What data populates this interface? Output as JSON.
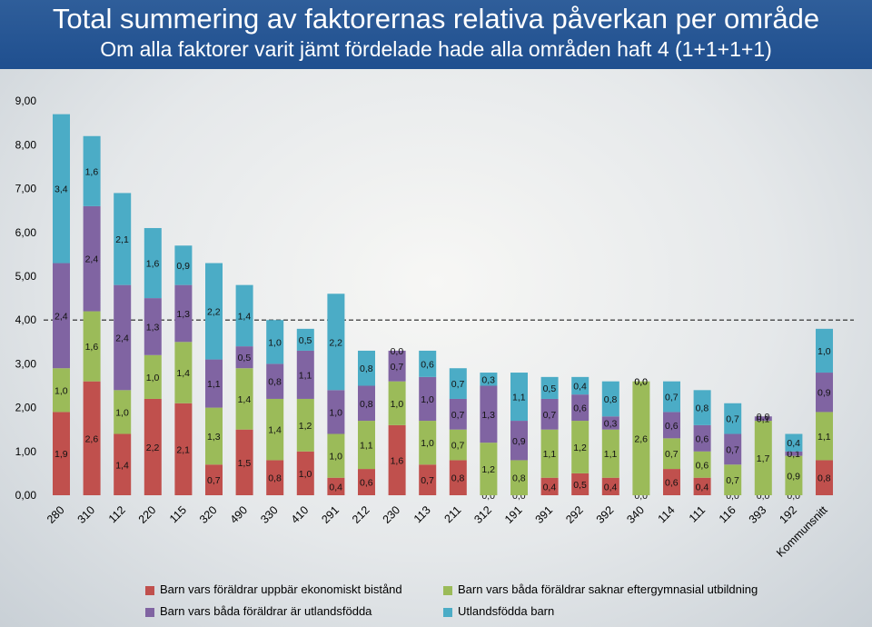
{
  "title": "Total summering av faktorernas relativa påverkan per område",
  "subtitle": "Om alla faktorer varit jämt fördelade hade alla områden haft 4 (1+1+1+1)",
  "chart_data": {
    "type": "bar",
    "stacked": true,
    "categories": [
      "280",
      "310",
      "112",
      "220",
      "115",
      "320",
      "490",
      "330",
      "410",
      "291",
      "212",
      "230",
      "113",
      "211",
      "312",
      "191",
      "391",
      "292",
      "392",
      "340",
      "114",
      "111",
      "116",
      "393",
      "192",
      "Kommunsnitt"
    ],
    "ylim": [
      0,
      9
    ],
    "yticks": [
      "0,00",
      "1,00",
      "2,00",
      "3,00",
      "4,00",
      "5,00",
      "6,00",
      "7,00",
      "8,00",
      "9,00"
    ],
    "reference_line": 4,
    "series": [
      {
        "name": "Barn vars föräldrar uppbär ekonomiskt bistånd",
        "color": "#c0504d",
        "values": [
          1.9,
          2.6,
          1.4,
          2.2,
          2.1,
          0.7,
          1.5,
          0.8,
          1.0,
          0.4,
          0.6,
          1.6,
          0.7,
          0.8,
          0.0,
          0.0,
          0.4,
          0.5,
          0.4,
          0.0,
          0.6,
          0.4,
          0.0,
          0.0,
          0.0,
          0.8
        ],
        "labels": [
          "1,9",
          "2,6",
          "1,4",
          "2,2",
          "2,1",
          "0,7",
          "1,5",
          "0,8",
          "1,0",
          "0,4",
          "0,6",
          "1,6",
          "0,7",
          "0,8",
          "0,0",
          "0,0",
          "0,4",
          "0,5",
          "0,4",
          "0,0",
          "0,6",
          "0,4",
          "0,0",
          "0,0",
          "0,0",
          "0,8"
        ]
      },
      {
        "name": "Barn vars båda föräldrar saknar eftergymnasial utbildning",
        "color": "#9bbb59",
        "values": [
          1.0,
          1.6,
          1.0,
          1.0,
          1.4,
          1.3,
          1.4,
          1.4,
          1.2,
          1.0,
          1.1,
          1.0,
          1.0,
          0.7,
          1.2,
          0.8,
          1.1,
          1.2,
          1.1,
          2.6,
          0.7,
          0.6,
          0.7,
          1.7,
          0.9,
          1.1
        ],
        "labels": [
          "1,0",
          "1,6",
          "1,0",
          "1,0",
          "1,4",
          "1,3",
          "1,4",
          "1,4",
          "1,2",
          "1,0",
          "1,1",
          "1,0",
          "1,0",
          "0,7",
          "1,2",
          "0,8",
          "1,1",
          "1,2",
          "1,1",
          "2,6",
          "0,7",
          "0,6",
          "0,7",
          "1,7",
          "0,9",
          "1,1"
        ]
      },
      {
        "name": "Barn vars båda föräldrar är utlandsfödda",
        "color": "#8064a2",
        "values": [
          2.4,
          2.4,
          2.4,
          1.3,
          1.3,
          1.1,
          0.5,
          0.8,
          1.1,
          1.0,
          0.8,
          0.7,
          1.0,
          0.7,
          1.3,
          0.9,
          0.7,
          0.6,
          0.3,
          0.0,
          0.6,
          0.6,
          0.7,
          0.1,
          0.1,
          0.9
        ],
        "labels": [
          "2,4",
          "2,4",
          "2,4",
          "1,3",
          "1,3",
          "1,1",
          "0,5",
          "0,8",
          "1,1",
          "1,0",
          "0,8",
          "0,7",
          "1,0",
          "0,7",
          "1,3",
          "0,9",
          "0,7",
          "0,6",
          "0,3",
          "0,0",
          "0,6",
          "0,6",
          "0,7",
          "0,1",
          "0,1",
          "0,9"
        ]
      },
      {
        "name": "Utlandsfödda barn",
        "color": "#4bacc6",
        "values": [
          3.4,
          1.6,
          2.1,
          1.6,
          0.9,
          2.2,
          1.4,
          1.0,
          0.5,
          2.2,
          0.8,
          0.0,
          0.6,
          0.7,
          0.3,
          1.1,
          0.5,
          0.4,
          0.8,
          0.0,
          0.7,
          0.8,
          0.7,
          0.0,
          0.4,
          1.0
        ],
        "labels": [
          "3,4",
          "1,6",
          "2,1",
          "1,6",
          "0,9",
          "2,2",
          "1,4",
          "1,0",
          "0,5",
          "2,2",
          "0,8",
          "0,0",
          "0,6",
          "0,7",
          "0,3",
          "1,1",
          "0,5",
          "0,4",
          "0,8",
          "0,0",
          "0,7",
          "0,8",
          "0,7",
          "0,0",
          "0,4",
          "1,0"
        ]
      }
    ],
    "legend_position": "bottom",
    "grid": false
  }
}
